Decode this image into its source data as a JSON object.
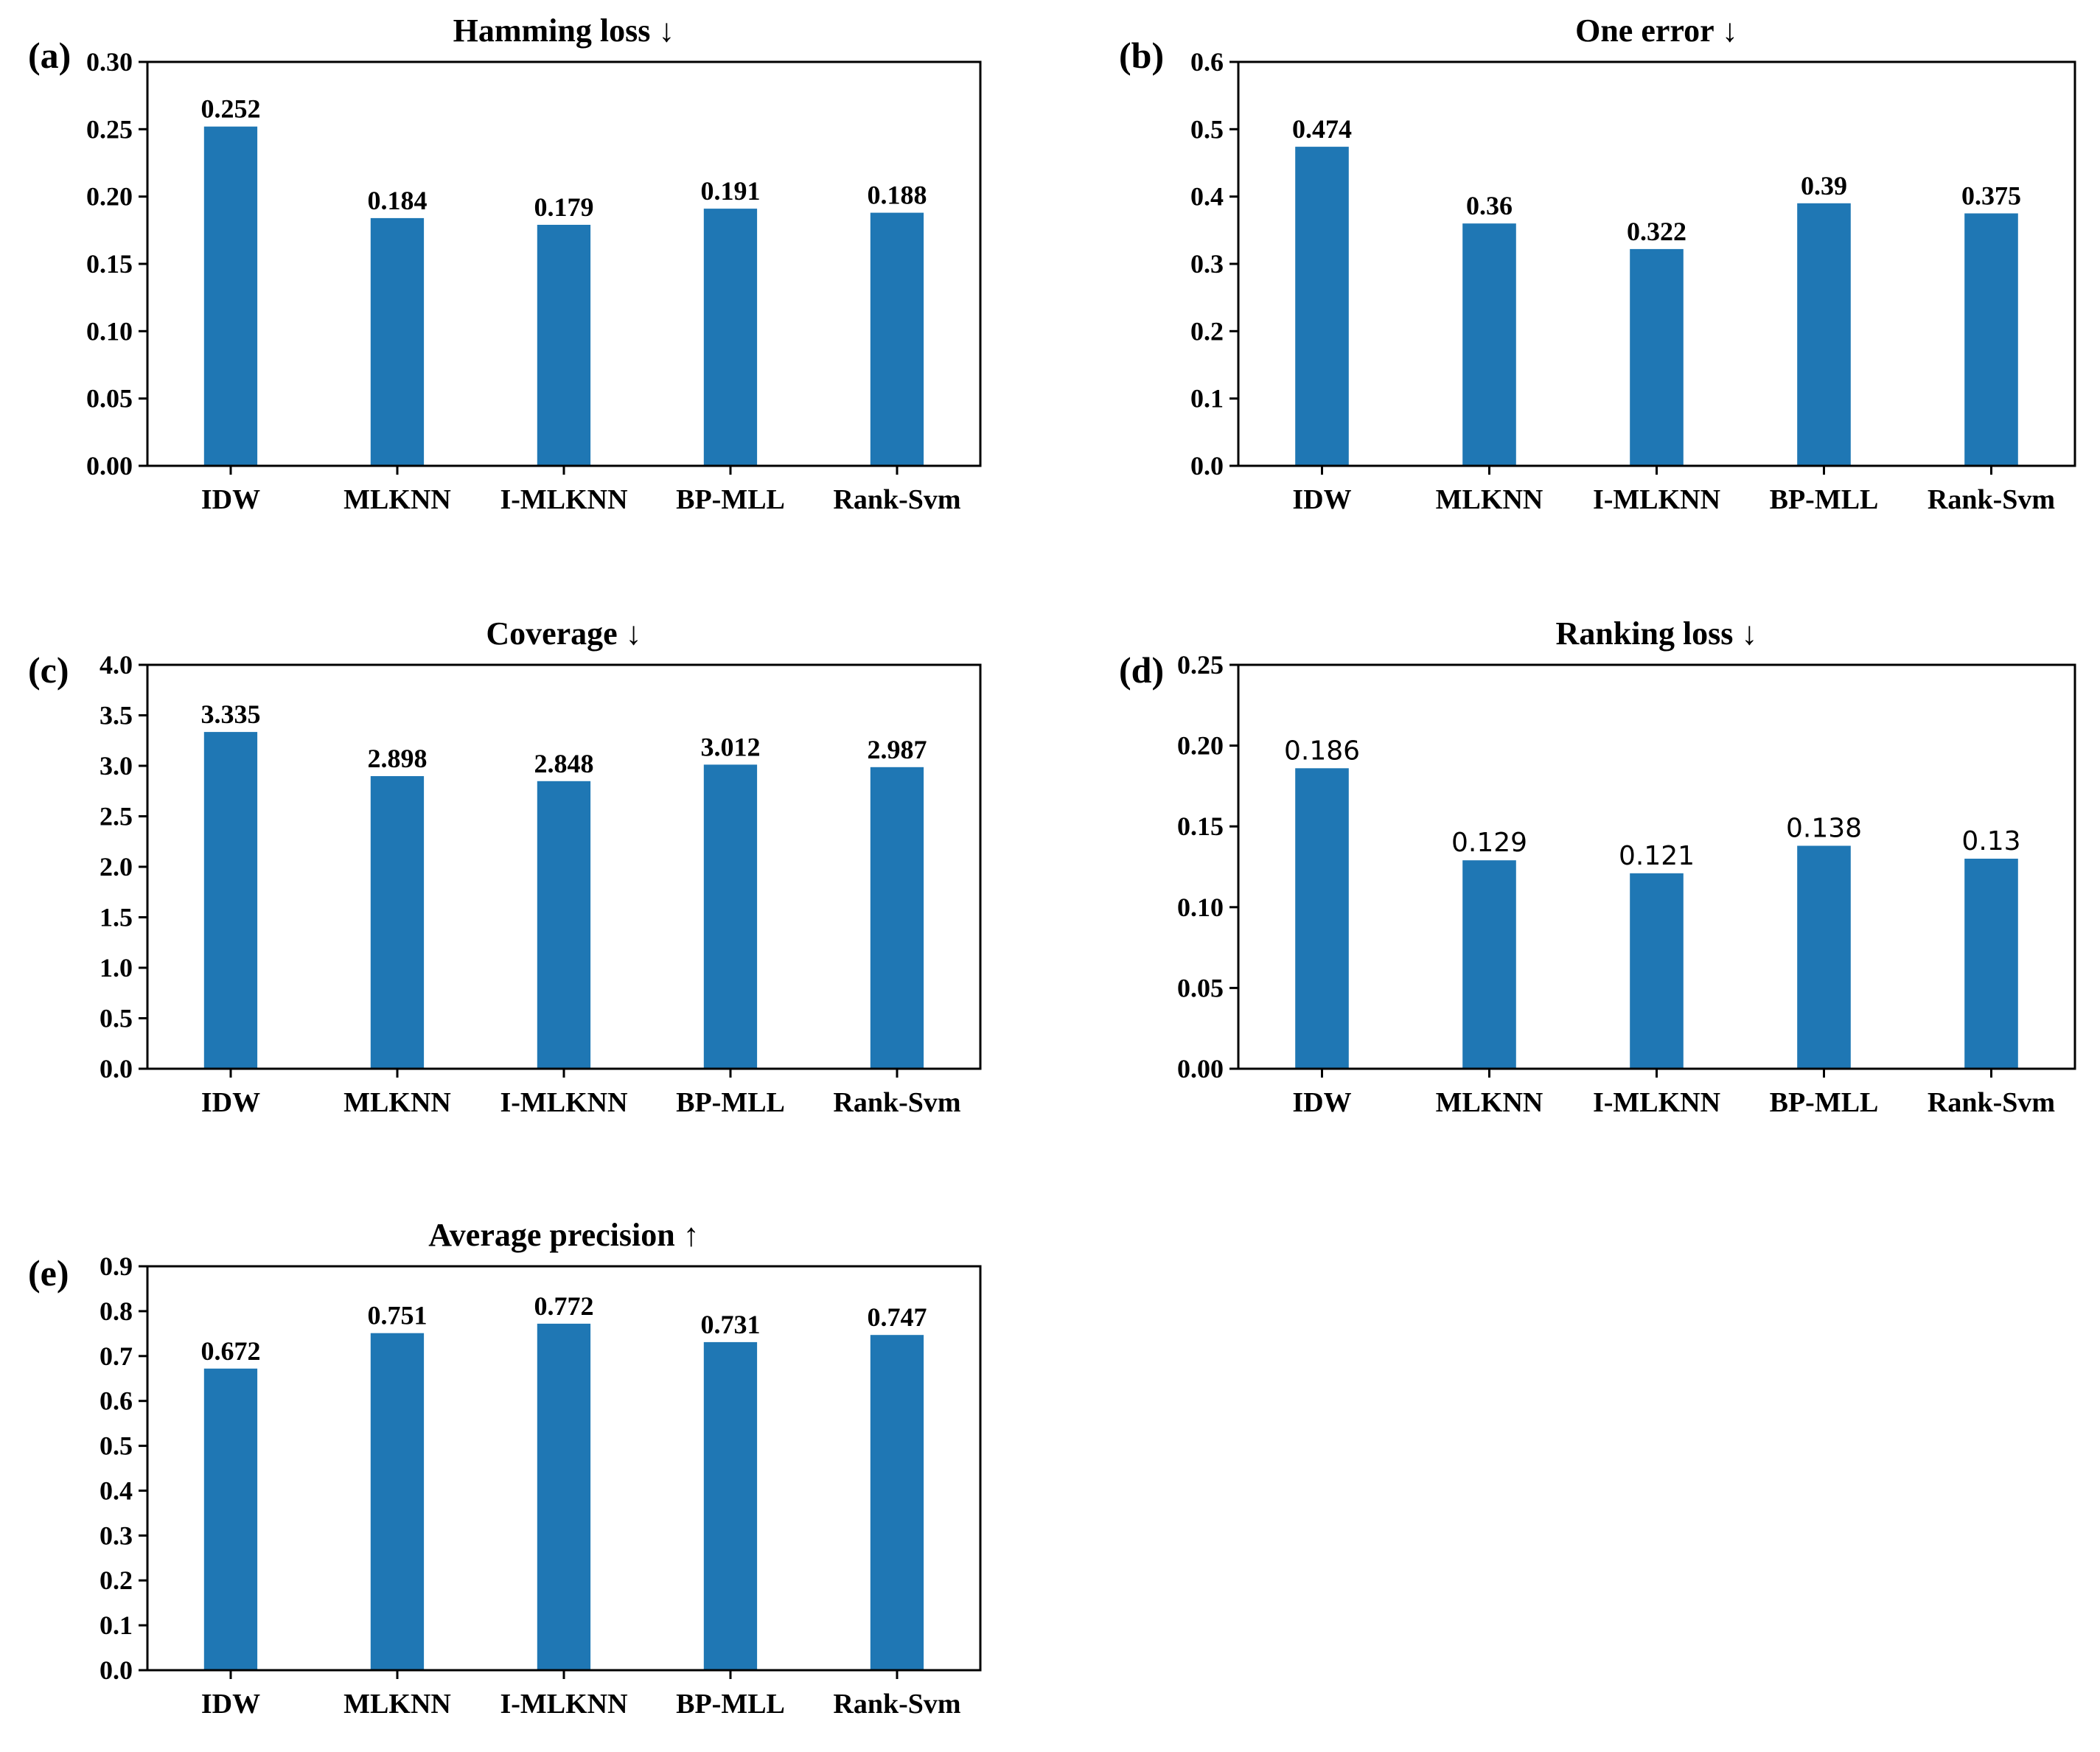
{
  "figure": {
    "bar_color": "#1f77b4",
    "categories": [
      "IDW",
      "MLKNN",
      "I-MLKNN",
      "BP-MLL",
      "Rank-Svm"
    ]
  },
  "chart_data": [
    {
      "panel": "(a)",
      "type": "bar",
      "title": "Hamming loss ↓",
      "categories": [
        "IDW",
        "MLKNN",
        "I-MLKNN",
        "BP-MLL",
        "Rank-Svm"
      ],
      "values": [
        0.252,
        0.184,
        0.179,
        0.191,
        0.188
      ],
      "value_labels": [
        "0.252",
        "0.184",
        "0.179",
        "0.191",
        "0.188"
      ],
      "ylim": [
        0,
        0.3
      ],
      "yticks": [
        0.0,
        0.05,
        0.1,
        0.15,
        0.2,
        0.25,
        0.3
      ],
      "ytick_labels": [
        "0.00",
        "0.05",
        "0.10",
        "0.15",
        "0.20",
        "0.25",
        "0.30"
      ],
      "grid": false,
      "label_font": "serif"
    },
    {
      "panel": "(b)",
      "type": "bar",
      "title": "One error ↓",
      "categories": [
        "IDW",
        "MLKNN",
        "I-MLKNN",
        "BP-MLL",
        "Rank-Svm"
      ],
      "values": [
        0.474,
        0.36,
        0.322,
        0.39,
        0.375
      ],
      "value_labels": [
        "0.474",
        "0.36",
        "0.322",
        "0.39",
        "0.375"
      ],
      "ylim": [
        0,
        0.6
      ],
      "yticks": [
        0.0,
        0.1,
        0.2,
        0.3,
        0.4,
        0.5,
        0.6
      ],
      "ytick_labels": [
        "0.0",
        "0.1",
        "0.2",
        "0.3",
        "0.4",
        "0.5",
        "0.6"
      ],
      "grid": false,
      "label_font": "serif"
    },
    {
      "panel": "(c)",
      "type": "bar",
      "title": "Coverage ↓",
      "categories": [
        "IDW",
        "MLKNN",
        "I-MLKNN",
        "BP-MLL",
        "Rank-Svm"
      ],
      "values": [
        3.335,
        2.898,
        2.848,
        3.012,
        2.987
      ],
      "value_labels": [
        "3.335",
        "2.898",
        "2.848",
        "3.012",
        "2.987"
      ],
      "ylim": [
        0,
        4.0
      ],
      "yticks": [
        0.0,
        0.5,
        1.0,
        1.5,
        2.0,
        2.5,
        3.0,
        3.5,
        4.0
      ],
      "ytick_labels": [
        "0.0",
        "0.5",
        "1.0",
        "1.5",
        "2.0",
        "2.5",
        "3.0",
        "3.5",
        "4.0"
      ],
      "grid": false,
      "label_font": "serif"
    },
    {
      "panel": "(d)",
      "type": "bar",
      "title": "Ranking loss ↓",
      "categories": [
        "IDW",
        "MLKNN",
        "I-MLKNN",
        "BP-MLL",
        "Rank-Svm"
      ],
      "values": [
        0.186,
        0.129,
        0.121,
        0.138,
        0.13
      ],
      "value_labels": [
        "0.186",
        "0.129",
        "0.121",
        "0.138",
        "0.13"
      ],
      "ylim": [
        0,
        0.25
      ],
      "yticks": [
        0.0,
        0.05,
        0.1,
        0.15,
        0.2,
        0.25
      ],
      "ytick_labels": [
        "0.00",
        "0.05",
        "0.10",
        "0.15",
        "0.20",
        "0.25"
      ],
      "grid": false,
      "label_font": "sans"
    },
    {
      "panel": "(e)",
      "type": "bar",
      "title": "Average precision ↑",
      "categories": [
        "IDW",
        "MLKNN",
        "I-MLKNN",
        "BP-MLL",
        "Rank-Svm"
      ],
      "values": [
        0.672,
        0.751,
        0.772,
        0.731,
        0.747
      ],
      "value_labels": [
        "0.672",
        "0.751",
        "0.772",
        "0.731",
        "0.747"
      ],
      "ylim": [
        0,
        0.9
      ],
      "yticks": [
        0.0,
        0.1,
        0.2,
        0.3,
        0.4,
        0.5,
        0.6,
        0.7,
        0.8,
        0.9
      ],
      "ytick_labels": [
        "0.0",
        "0.1",
        "0.2",
        "0.3",
        "0.4",
        "0.5",
        "0.6",
        "0.7",
        "0.8",
        "0.9"
      ],
      "grid": false,
      "label_font": "serif"
    }
  ]
}
